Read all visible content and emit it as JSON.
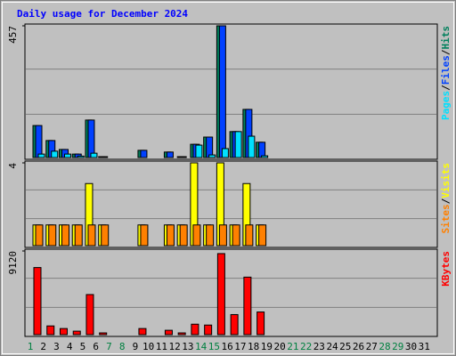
{
  "chart_data": [
    {
      "type": "bar",
      "title": "Daily usage for December 2024",
      "legend_separator": "/",
      "ylim": [
        0,
        457
      ],
      "yticks": [
        457
      ],
      "series": [
        {
          "name": "Hits",
          "color": "#00805c",
          "values": [
            111,
            59,
            28,
            12,
            130,
            3,
            0,
            0,
            25,
            0,
            19,
            3,
            46,
            71,
            457,
            90,
            167,
            53,
            0,
            0,
            0,
            0,
            0,
            0,
            0,
            0,
            0,
            0,
            0,
            0,
            0
          ]
        },
        {
          "name": "Files",
          "color": "#0040ff",
          "values": [
            111,
            59,
            28,
            12,
            130,
            3,
            0,
            0,
            25,
            0,
            19,
            3,
            46,
            71,
            457,
            90,
            167,
            53,
            0,
            0,
            0,
            0,
            0,
            0,
            0,
            0,
            0,
            0,
            0,
            0,
            0
          ]
        },
        {
          "name": "Pages",
          "color": "#00e0ff",
          "values": [
            12,
            22,
            12,
            5,
            15,
            0,
            0,
            0,
            0,
            0,
            0,
            0,
            43,
            9,
            31,
            90,
            74,
            6,
            0,
            0,
            0,
            0,
            0,
            0,
            0,
            0,
            0,
            0,
            0,
            0,
            0
          ]
        }
      ]
    },
    {
      "type": "bar",
      "legend_separator": "/",
      "ylim": [
        0,
        4
      ],
      "yticks": [
        4
      ],
      "series": [
        {
          "name": "Visits",
          "color": "#ffff00",
          "values": [
            1,
            1,
            1,
            1,
            3,
            1,
            0,
            0,
            1,
            0,
            1,
            1,
            4,
            1,
            4,
            1,
            3,
            1,
            0,
            0,
            0,
            0,
            0,
            0,
            0,
            0,
            0,
            0,
            0,
            0,
            0
          ]
        },
        {
          "name": "Sites",
          "color": "#ff8000",
          "values": [
            1,
            1,
            1,
            1,
            1,
            1,
            0,
            0,
            1,
            0,
            1,
            1,
            1,
            1,
            1,
            1,
            1,
            1,
            0,
            0,
            0,
            0,
            0,
            0,
            0,
            0,
            0,
            0,
            0,
            0,
            0
          ]
        }
      ]
    },
    {
      "type": "bar",
      "ylim": [
        0,
        9120
      ],
      "yticks": [
        9120
      ],
      "series": [
        {
          "name": "KBytes",
          "color": "#ff0000",
          "values": [
            7315,
            950,
            665,
            380,
            4370,
            190,
            0,
            0,
            665,
            0,
            475,
            190,
            1140,
            1045,
            8835,
            2185,
            6270,
            2470,
            0,
            0,
            0,
            0,
            0,
            0,
            0,
            0,
            0,
            0,
            0,
            0,
            0
          ]
        }
      ],
      "categories": [
        "1",
        "2",
        "3",
        "4",
        "5",
        "6",
        "7",
        "8",
        "9",
        "10",
        "11",
        "12",
        "13",
        "14",
        "15",
        "16",
        "17",
        "18",
        "19",
        "20",
        "21",
        "22",
        "23",
        "24",
        "25",
        "26",
        "27",
        "28",
        "29",
        "30",
        "31"
      ],
      "highlight_indices": [
        0,
        6,
        7,
        13,
        14,
        20,
        21,
        27,
        28
      ],
      "highlight_color": "#008040"
    }
  ]
}
